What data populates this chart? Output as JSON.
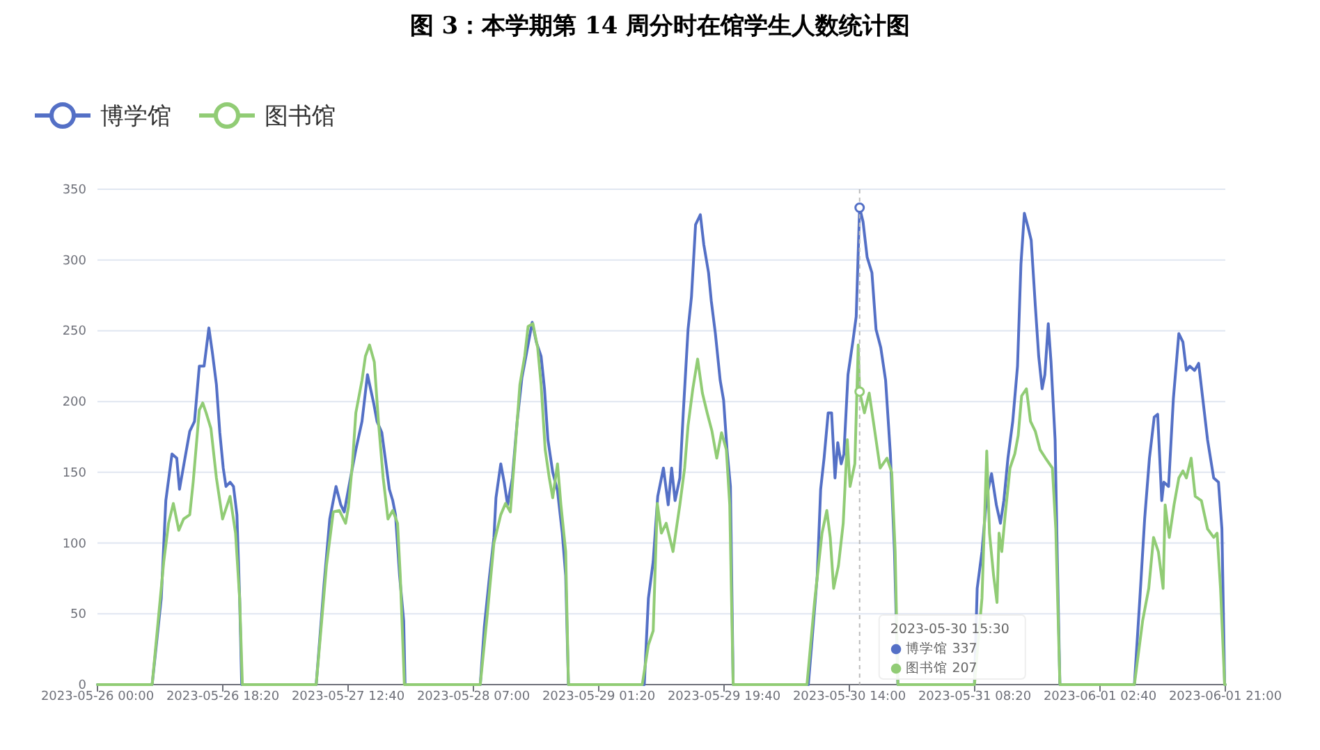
{
  "chart_data": {
    "type": "line",
    "title": "图 3：本学期第 14 周分时在馆学生人数统计图",
    "xlim": [
      "2023-05-26T00:00",
      "2023-06-01T21:00"
    ],
    "xticks": [
      {
        "value": "2023-05-26T00:00",
        "label": "2023-05-26 00:00"
      },
      {
        "value": "2023-05-26T18:20",
        "label": "2023-05-26 18:20"
      },
      {
        "value": "2023-05-27T12:40",
        "label": "2023-05-27 12:40"
      },
      {
        "value": "2023-05-28T07:00",
        "label": "2023-05-28 07:00"
      },
      {
        "value": "2023-05-29T01:20",
        "label": "2023-05-29 01:20"
      },
      {
        "value": "2023-05-29T19:40",
        "label": "2023-05-29 19:40"
      },
      {
        "value": "2023-05-30T14:00",
        "label": "2023-05-30 14:00"
      },
      {
        "value": "2023-05-31T08:20",
        "label": "2023-05-31 08:20"
      },
      {
        "value": "2023-06-01T02:40",
        "label": "2023-06-01 02:40"
      },
      {
        "value": "2023-06-01T21:00",
        "label": "2023-06-01 21:00"
      }
    ],
    "ylim": [
      0,
      350
    ],
    "yticks": [
      0,
      50,
      100,
      150,
      200,
      250,
      300,
      350
    ],
    "grid": "y",
    "legend": "top left",
    "line_style": "solid",
    "annotations": [
      "2023-05-30 15:30",
      "● 博学馆 337",
      "● 图书馆 207"
    ],
    "ref_lines": [
      {
        "axis": "x",
        "value": "2023-05-30T15:30",
        "color": "#bbbbbb",
        "line_style": "dashed"
      }
    ],
    "series": [
      {
        "name": "博学馆",
        "color": "#5470c6",
        "x": [
          "2023-05-26T00:00",
          "2023-05-26T08:00",
          "2023-05-26T09:20",
          "2023-05-26T10:00",
          "2023-05-26T10:54",
          "2023-05-26T11:36",
          "2023-05-26T12:00",
          "2023-05-26T12:48",
          "2023-05-26T13:30",
          "2023-05-26T14:12",
          "2023-05-26T14:54",
          "2023-05-26T15:36",
          "2023-05-26T16:18",
          "2023-05-26T16:48",
          "2023-05-26T17:24",
          "2023-05-26T17:54",
          "2023-05-26T18:24",
          "2023-05-26T18:48",
          "2023-05-26T19:24",
          "2023-05-26T19:54",
          "2023-05-26T20:24",
          "2023-05-26T20:48",
          "2023-05-26T21:06",
          "2023-05-27T08:00",
          "2023-05-27T09:09",
          "2023-05-27T09:59",
          "2023-05-27T10:54",
          "2023-05-27T11:36",
          "2023-05-27T12:06",
          "2023-05-27T12:54",
          "2023-05-27T13:48",
          "2023-05-27T14:42",
          "2023-05-27T15:30",
          "2023-05-27T16:24",
          "2023-05-27T16:54",
          "2023-05-27T17:36",
          "2023-05-27T18:06",
          "2023-05-27T18:42",
          "2023-05-27T19:12",
          "2023-05-27T19:36",
          "2023-05-27T20:12",
          "2023-05-27T20:48",
          "2023-05-27T21:00",
          "2023-05-28T08:00",
          "2023-05-28T08:36",
          "2023-05-28T09:18",
          "2023-05-28T10:00",
          "2023-05-28T10:18",
          "2023-05-28T11:00",
          "2023-05-28T11:30",
          "2023-05-28T12:00",
          "2023-05-28T12:42",
          "2023-05-28T13:24",
          "2023-05-28T14:06",
          "2023-05-28T14:48",
          "2023-05-28T15:36",
          "2023-05-28T16:12",
          "2023-05-28T16:54",
          "2023-05-28T17:24",
          "2023-05-28T17:54",
          "2023-05-28T18:36",
          "2023-05-28T19:18",
          "2023-05-28T20:00",
          "2023-05-28T20:30",
          "2023-05-28T20:54",
          "2023-05-29T08:00",
          "2023-05-29T08:36",
          "2023-05-29T09:18",
          "2023-05-29T09:58",
          "2023-05-29T10:48",
          "2023-05-29T11:30",
          "2023-05-29T12:00",
          "2023-05-29T12:30",
          "2023-05-29T13:12",
          "2023-05-29T13:42",
          "2023-05-29T14:24",
          "2023-05-29T14:54",
          "2023-05-29T15:30",
          "2023-05-29T16:12",
          "2023-05-29T16:42",
          "2023-05-29T17:24",
          "2023-05-29T17:48",
          "2023-05-29T18:24",
          "2023-05-29T19:06",
          "2023-05-29T19:36",
          "2023-05-29T20:06",
          "2023-05-29T20:36",
          "2023-05-29T21:00",
          "2023-05-30T08:00",
          "2023-05-30T08:36",
          "2023-05-30T09:18",
          "2023-05-30T09:48",
          "2023-05-30T10:18",
          "2023-05-30T10:54",
          "2023-05-30T11:24",
          "2023-05-30T11:54",
          "2023-05-30T12:18",
          "2023-05-30T12:48",
          "2023-05-30T13:12",
          "2023-05-30T13:48",
          "2023-05-30T14:30",
          "2023-05-30T15:00",
          "2023-05-30T15:30",
          "2023-05-30T16:00",
          "2023-05-30T16:36",
          "2023-05-30T17:18",
          "2023-05-30T17:54",
          "2023-05-30T18:36",
          "2023-05-30T19:18",
          "2023-05-30T20:00",
          "2023-05-30T20:36",
          "2023-05-30T21:06",
          "2023-05-31T08:18",
          "2023-05-31T08:42",
          "2023-05-31T09:24",
          "2023-05-31T10:06",
          "2023-05-31T10:48",
          "2023-05-31T11:30",
          "2023-05-31T12:06",
          "2023-05-31T12:36",
          "2023-05-31T13:12",
          "2023-05-31T13:54",
          "2023-05-31T14:36",
          "2023-05-31T15:06",
          "2023-05-31T15:36",
          "2023-05-31T16:06",
          "2023-05-31T16:36",
          "2023-05-31T17:12",
          "2023-05-31T17:42",
          "2023-05-31T18:12",
          "2023-05-31T18:36",
          "2023-05-31T19:06",
          "2023-05-31T19:30",
          "2023-05-31T20:06",
          "2023-05-31T20:24",
          "2023-05-31T20:48",
          "2023-06-01T07:42",
          "2023-06-01T08:30",
          "2023-06-01T09:12",
          "2023-06-01T09:54",
          "2023-06-01T10:36",
          "2023-06-01T11:06",
          "2023-06-01T11:42",
          "2023-06-01T12:00",
          "2023-06-01T12:42",
          "2023-06-01T13:24",
          "2023-06-01T14:12",
          "2023-06-01T14:48",
          "2023-06-01T15:18",
          "2023-06-01T15:48",
          "2023-06-01T16:30",
          "2023-06-01T17:06",
          "2023-06-01T17:42",
          "2023-06-01T18:24",
          "2023-06-01T19:18",
          "2023-06-01T20:00",
          "2023-06-01T20:30",
          "2023-06-01T20:54",
          "2023-06-01T21:00"
        ],
        "values": [
          0,
          0,
          61,
          130,
          163,
          160,
          138,
          160,
          179,
          186,
          225,
          225,
          252,
          235,
          212,
          178,
          153,
          140,
          143,
          140,
          120,
          61,
          0,
          0,
          71,
          117,
          140,
          127,
          122,
          143,
          166,
          186,
          219,
          199,
          186,
          178,
          160,
          138,
          130,
          120,
          77,
          45,
          0,
          0,
          41,
          74,
          104,
          132,
          156,
          143,
          127,
          146,
          186,
          217,
          235,
          256,
          242,
          232,
          209,
          173,
          150,
          137,
          107,
          77,
          0,
          0,
          61,
          87,
          133,
          153,
          127,
          153,
          130,
          146,
          192,
          251,
          274,
          325,
          332,
          311,
          291,
          271,
          248,
          215,
          201,
          166,
          140,
          0,
          0,
          35,
          77,
          138,
          160,
          192,
          192,
          146,
          171,
          156,
          163,
          219,
          242,
          260,
          337,
          327,
          302,
          291,
          251,
          238,
          215,
          163,
          94,
          0,
          0,
          68,
          94,
          133,
          149,
          127,
          114,
          130,
          160,
          186,
          225,
          297,
          333,
          324,
          314,
          268,
          232,
          209,
          219,
          255,
          228,
          173,
          94,
          0,
          0,
          61,
          117,
          160,
          189,
          191,
          130,
          143,
          140,
          202,
          248,
          242,
          222,
          225,
          222,
          227,
          202,
          173,
          146,
          143,
          110,
          0,
          0
        ]
      },
      {
        "name": "图书馆",
        "color": "#91cc75",
        "x": [
          "2023-05-26T00:00",
          "2023-05-26T08:00",
          "2023-05-26T09:42",
          "2023-05-26T10:24",
          "2023-05-26T11:06",
          "2023-05-26T11:54",
          "2023-05-26T12:36",
          "2023-05-26T13:30",
          "2023-05-26T14:00",
          "2023-05-26T14:54",
          "2023-05-26T15:24",
          "2023-05-26T15:54",
          "2023-05-26T16:36",
          "2023-05-26T17:24",
          "2023-05-26T18:18",
          "2023-05-26T19:24",
          "2023-05-26T20:12",
          "2023-05-26T20:48",
          "2023-05-26T21:12",
          "2023-05-27T08:00",
          "2023-05-27T09:30",
          "2023-05-27T10:30",
          "2023-05-27T11:24",
          "2023-05-27T12:18",
          "2023-05-27T12:42",
          "2023-05-27T13:18",
          "2023-05-27T13:48",
          "2023-05-27T14:42",
          "2023-05-27T15:12",
          "2023-05-27T15:48",
          "2023-05-27T16:30",
          "2023-05-27T17:06",
          "2023-05-27T17:48",
          "2023-05-27T18:30",
          "2023-05-27T19:12",
          "2023-05-27T19:54",
          "2023-05-27T20:18",
          "2023-05-27T20:54",
          "2023-05-28T08:00",
          "2023-05-28T09:00",
          "2023-05-28T10:00",
          "2023-05-28T11:00",
          "2023-05-28T11:42",
          "2023-05-28T12:24",
          "2023-05-28T13:06",
          "2023-05-28T13:48",
          "2023-05-28T14:30",
          "2023-05-28T15:00",
          "2023-05-28T15:42",
          "2023-05-28T16:24",
          "2023-05-28T16:54",
          "2023-05-28T17:30",
          "2023-05-28T18:06",
          "2023-05-28T18:36",
          "2023-05-28T19:18",
          "2023-05-28T19:48",
          "2023-05-28T20:30",
          "2023-05-28T20:54",
          "2023-05-29T07:42",
          "2023-05-29T08:36",
          "2023-05-29T09:18",
          "2023-05-29T09:54",
          "2023-05-29T10:30",
          "2023-05-29T11:12",
          "2023-05-29T12:12",
          "2023-05-29T13:12",
          "2023-05-29T13:54",
          "2023-05-29T14:24",
          "2023-05-29T15:06",
          "2023-05-29T15:48",
          "2023-05-29T16:30",
          "2023-05-29T17:12",
          "2023-05-29T17:54",
          "2023-05-29T18:36",
          "2023-05-29T19:18",
          "2023-05-29T20:00",
          "2023-05-29T20:30",
          "2023-05-29T21:00",
          "2023-05-30T07:48",
          "2023-05-30T08:54",
          "2023-05-30T10:00",
          "2023-05-30T10:42",
          "2023-05-30T11:12",
          "2023-05-30T11:42",
          "2023-05-30T12:24",
          "2023-05-30T13:06",
          "2023-05-30T13:42",
          "2023-05-30T14:06",
          "2023-05-30T14:48",
          "2023-05-30T15:18",
          "2023-05-30T15:30",
          "2023-05-30T16:12",
          "2023-05-30T16:54",
          "2023-05-30T17:36",
          "2023-05-30T18:30",
          "2023-05-30T19:30",
          "2023-05-30T20:12",
          "2023-05-30T20:42",
          "2023-05-30T21:06",
          "2023-05-31T08:18",
          "2023-05-31T09:24",
          "2023-05-31T10:06",
          "2023-05-31T10:30",
          "2023-05-31T11:06",
          "2023-05-31T11:36",
          "2023-05-31T11:54",
          "2023-05-31T12:18",
          "2023-05-31T12:48",
          "2023-05-31T13:30",
          "2023-05-31T14:12",
          "2023-05-31T14:42",
          "2023-05-31T15:12",
          "2023-05-31T15:54",
          "2023-05-31T16:30",
          "2023-05-31T17:12",
          "2023-05-31T17:54",
          "2023-05-31T18:42",
          "2023-05-31T19:42",
          "2023-05-31T20:12",
          "2023-05-31T20:48",
          "2023-06-01T07:42",
          "2023-06-01T08:54",
          "2023-06-01T09:48",
          "2023-06-01T10:30",
          "2023-06-01T11:12",
          "2023-06-01T11:54",
          "2023-06-01T12:12",
          "2023-06-01T12:48",
          "2023-06-01T13:30",
          "2023-06-01T14:12",
          "2023-06-01T14:48",
          "2023-06-01T15:18",
          "2023-06-01T16:00",
          "2023-06-01T16:36",
          "2023-06-01T17:30",
          "2023-06-01T18:24",
          "2023-06-01T19:18",
          "2023-06-01T19:48",
          "2023-06-01T20:18",
          "2023-06-01T20:54",
          "2023-06-01T21:00"
        ],
        "values": [
          0,
          0,
          87,
          114,
          128,
          109,
          117,
          120,
          143,
          194,
          199,
          192,
          181,
          146,
          117,
          133,
          107,
          61,
          0,
          0,
          84,
          122,
          123,
          114,
          125,
          156,
          192,
          215,
          232,
          240,
          228,
          186,
          146,
          117,
          123,
          114,
          77,
          0,
          0,
          48,
          100,
          120,
          128,
          122,
          166,
          212,
          232,
          253,
          255,
          238,
          212,
          166,
          146,
          132,
          156,
          127,
          94,
          0,
          0,
          28,
          38,
          128,
          107,
          114,
          94,
          127,
          153,
          183,
          209,
          230,
          206,
          192,
          179,
          160,
          178,
          166,
          127,
          0,
          0,
          58,
          107,
          123,
          104,
          68,
          84,
          114,
          173,
          140,
          156,
          240,
          207,
          192,
          206,
          183,
          153,
          160,
          150,
          94,
          0,
          0,
          61,
          165,
          107,
          77,
          58,
          107,
          94,
          120,
          153,
          163,
          176,
          204,
          209,
          186,
          179,
          166,
          160,
          153,
          110,
          0,
          0,
          45,
          68,
          104,
          94,
          68,
          127,
          104,
          127,
          146,
          151,
          146,
          160,
          133,
          130,
          110,
          104,
          107,
          68,
          0,
          0
        ]
      }
    ]
  }
}
